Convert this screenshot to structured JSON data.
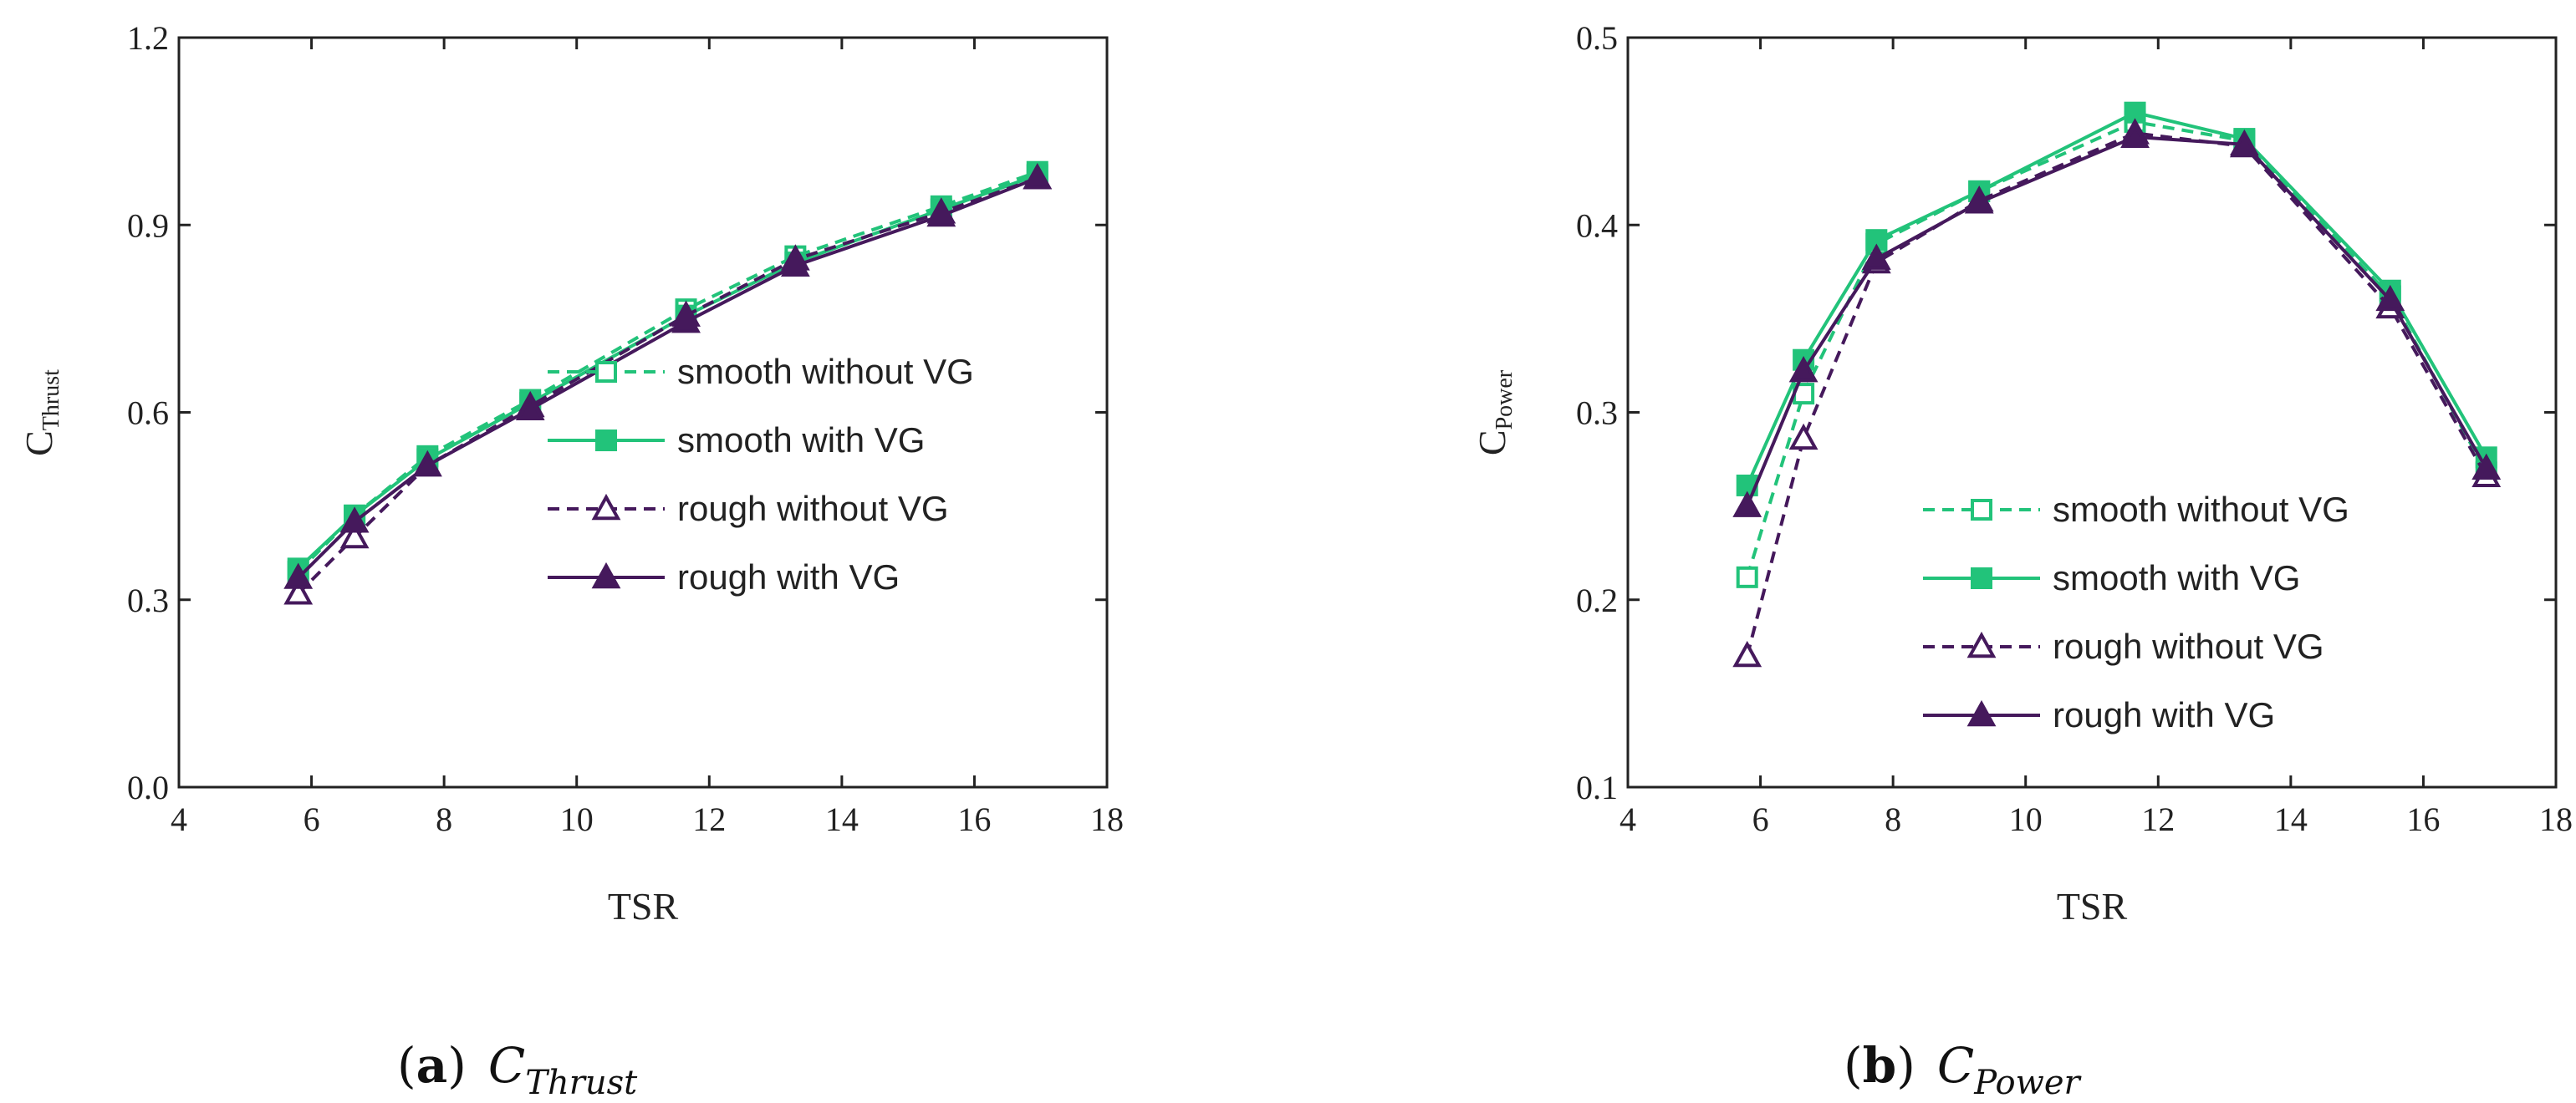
{
  "colors": {
    "smooth": "#22c37a",
    "rough": "#45195c",
    "axis": "#222222"
  },
  "chart_data": [
    {
      "type": "line",
      "panel_tag": "a",
      "caption_main": "C",
      "caption_sub": "Thrust",
      "xlabel": "TSR",
      "ylabel_main": "C",
      "ylabel_sub": "Thrust",
      "xlim": [
        4,
        18
      ],
      "ylim": [
        0.0,
        1.2
      ],
      "xticks": [
        "4",
        "6",
        "8",
        "10",
        "12",
        "14",
        "16",
        "18"
      ],
      "yticks": [
        "0.0",
        "0.3",
        "0.6",
        "0.9",
        "1.2"
      ],
      "x": [
        5.8,
        6.65,
        7.75,
        9.3,
        11.65,
        13.3,
        15.5,
        16.95
      ],
      "legend_position": "bottom-right",
      "series": [
        {
          "name": "smooth without VG",
          "color": "smooth",
          "dash": true,
          "marker": "square-open",
          "values": [
            0.345,
            0.435,
            0.53,
            0.62,
            0.765,
            0.85,
            0.93,
            0.985
          ]
        },
        {
          "name": "smooth with VG",
          "color": "smooth",
          "dash": false,
          "marker": "square-filled",
          "values": [
            0.35,
            0.435,
            0.525,
            0.615,
            0.755,
            0.84,
            0.925,
            0.98
          ]
        },
        {
          "name": "rough without VG",
          "color": "rough",
          "dash": true,
          "marker": "triangle-open",
          "values": [
            0.31,
            0.4,
            0.515,
            0.61,
            0.755,
            0.845,
            0.92,
            0.975
          ]
        },
        {
          "name": "rough with VG",
          "color": "rough",
          "dash": false,
          "marker": "triangle-filled",
          "values": [
            0.335,
            0.425,
            0.515,
            0.605,
            0.745,
            0.835,
            0.915,
            0.975
          ]
        }
      ]
    },
    {
      "type": "line",
      "panel_tag": "b",
      "caption_main": "C",
      "caption_sub": "Power",
      "xlabel": "TSR",
      "ylabel_main": "C",
      "ylabel_sub": "Power",
      "xlim": [
        4,
        18
      ],
      "ylim": [
        0.1,
        0.5
      ],
      "xticks": [
        "4",
        "6",
        "8",
        "10",
        "12",
        "14",
        "16",
        "18"
      ],
      "yticks": [
        "0.1",
        "0.2",
        "0.3",
        "0.4",
        "0.5"
      ],
      "x": [
        5.8,
        6.65,
        7.75,
        9.3,
        11.65,
        13.3,
        15.5,
        16.95
      ],
      "legend_position": "bottom-center",
      "series": [
        {
          "name": "smooth without VG",
          "color": "smooth",
          "dash": true,
          "marker": "square-open",
          "values": [
            0.212,
            0.31,
            0.39,
            0.418,
            0.455,
            0.445,
            0.362,
            0.268
          ]
        },
        {
          "name": "smooth with VG",
          "color": "smooth",
          "dash": false,
          "marker": "square-filled",
          "values": [
            0.261,
            0.328,
            0.392,
            0.418,
            0.46,
            0.446,
            0.365,
            0.276
          ]
        },
        {
          "name": "rough without VG",
          "color": "rough",
          "dash": true,
          "marker": "triangle-open",
          "values": [
            0.17,
            0.286,
            0.38,
            0.413,
            0.449,
            0.442,
            0.356,
            0.266
          ]
        },
        {
          "name": "rough with VG",
          "color": "rough",
          "dash": false,
          "marker": "triangle-filled",
          "values": [
            0.25,
            0.322,
            0.382,
            0.412,
            0.447,
            0.443,
            0.36,
            0.27
          ]
        }
      ]
    }
  ]
}
